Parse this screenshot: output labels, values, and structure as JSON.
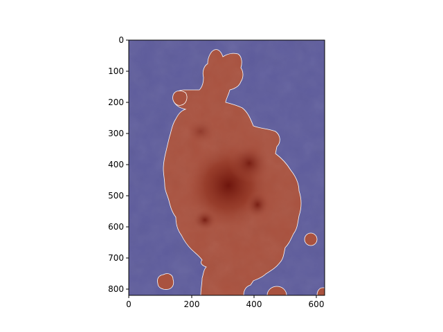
{
  "figure": {
    "x_ticks": [
      "0",
      "200",
      "400",
      "600"
    ],
    "y_ticks": [
      "0",
      "100",
      "200",
      "300",
      "400",
      "500",
      "600",
      "700",
      "800"
    ],
    "x_range": [
      0,
      626
    ],
    "y_range": [
      0,
      820
    ],
    "colors": {
      "background_overlay": "#5e5c9c",
      "lesion_overlay": "#a9523f",
      "lesion_core": "#7a1f12",
      "mask_outline": "#ffffff"
    }
  }
}
